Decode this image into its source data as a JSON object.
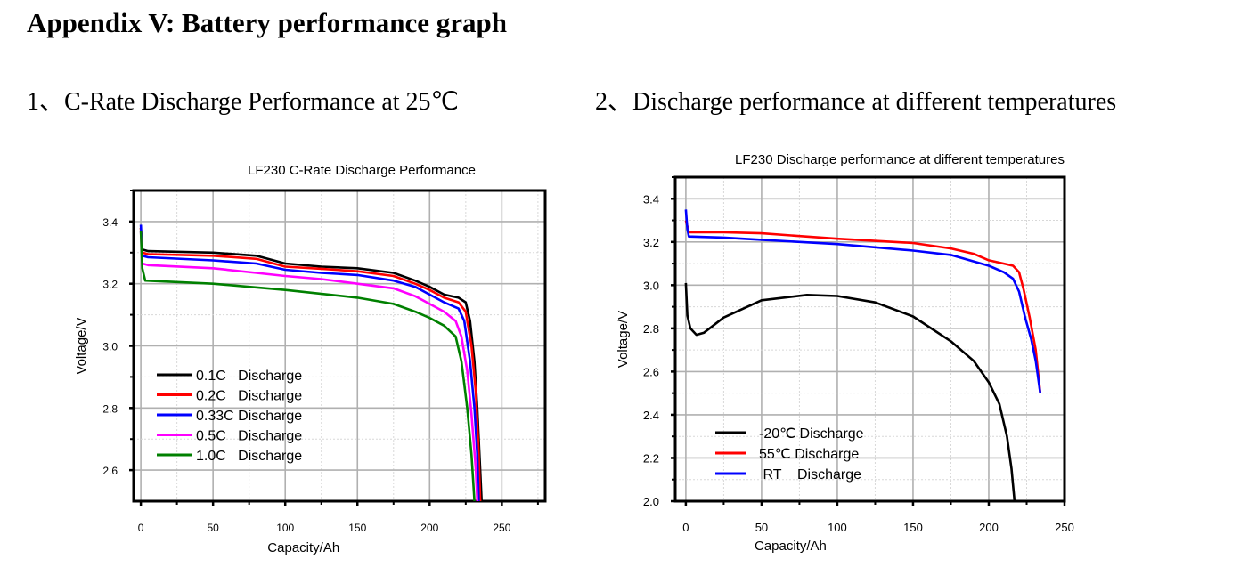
{
  "page": {
    "title": "Appendix V: Battery performance graph",
    "section1": "1、C-Rate Discharge Performance at 25℃",
    "section2": "2、Discharge performance at different temperatures"
  },
  "chart_data": [
    {
      "type": "line",
      "title": "LF230 C-Rate Discharge Performance",
      "xlabel": "Capacity/Ah",
      "ylabel": "Voltage/V",
      "xlim": [
        -5,
        280
      ],
      "ylim": [
        2.5,
        3.5
      ],
      "xticks": [
        0,
        50,
        100,
        150,
        200,
        250
      ],
      "yticks": [
        2.6,
        2.8,
        3.0,
        3.2,
        3.4
      ],
      "grid": true,
      "legend": "bottom-left",
      "series": [
        {
          "name": "0.1C   Discharge",
          "color": "#000000",
          "points": [
            [
              0,
              3.38
            ],
            [
              1,
              3.31
            ],
            [
              5,
              3.305
            ],
            [
              50,
              3.3
            ],
            [
              80,
              3.29
            ],
            [
              100,
              3.265
            ],
            [
              125,
              3.255
            ],
            [
              150,
              3.25
            ],
            [
              175,
              3.235
            ],
            [
              190,
              3.21
            ],
            [
              200,
              3.19
            ],
            [
              210,
              3.165
            ],
            [
              220,
              3.155
            ],
            [
              225,
              3.14
            ],
            [
              228,
              3.08
            ],
            [
              231,
              2.95
            ],
            [
              233,
              2.8
            ],
            [
              235,
              2.6
            ],
            [
              236,
              2.5
            ]
          ]
        },
        {
          "name": "0.2C   Discharge",
          "color": "#ff0000",
          "points": [
            [
              0,
              3.38
            ],
            [
              1,
              3.3
            ],
            [
              5,
              3.295
            ],
            [
              50,
              3.29
            ],
            [
              80,
              3.28
            ],
            [
              100,
              3.255
            ],
            [
              125,
              3.248
            ],
            [
              150,
              3.24
            ],
            [
              175,
              3.225
            ],
            [
              190,
              3.2
            ],
            [
              200,
              3.18
            ],
            [
              210,
              3.155
            ],
            [
              220,
              3.14
            ],
            [
              225,
              3.11
            ],
            [
              229,
              3.0
            ],
            [
              232,
              2.85
            ],
            [
              234,
              2.65
            ],
            [
              235,
              2.5
            ]
          ]
        },
        {
          "name": "0.33C Discharge",
          "color": "#0000ff",
          "points": [
            [
              0,
              3.39
            ],
            [
              1,
              3.29
            ],
            [
              5,
              3.285
            ],
            [
              50,
              3.275
            ],
            [
              80,
              3.265
            ],
            [
              100,
              3.245
            ],
            [
              125,
              3.235
            ],
            [
              150,
              3.228
            ],
            [
              175,
              3.21
            ],
            [
              190,
              3.19
            ],
            [
              200,
              3.165
            ],
            [
              210,
              3.14
            ],
            [
              220,
              3.12
            ],
            [
              224,
              3.08
            ],
            [
              228,
              2.95
            ],
            [
              231,
              2.8
            ],
            [
              233,
              2.65
            ],
            [
              234,
              2.5
            ]
          ]
        },
        {
          "name": "0.5C   Discharge",
          "color": "#ff00ff",
          "points": [
            [
              0,
              3.37
            ],
            [
              1,
              3.265
            ],
            [
              5,
              3.26
            ],
            [
              50,
              3.25
            ],
            [
              80,
              3.235
            ],
            [
              100,
              3.225
            ],
            [
              125,
              3.215
            ],
            [
              150,
              3.2
            ],
            [
              175,
              3.185
            ],
            [
              190,
              3.16
            ],
            [
              200,
              3.135
            ],
            [
              210,
              3.11
            ],
            [
              218,
              3.08
            ],
            [
              222,
              3.03
            ],
            [
              226,
              2.92
            ],
            [
              229,
              2.78
            ],
            [
              232,
              2.6
            ],
            [
              233,
              2.5
            ]
          ]
        },
        {
          "name": "1.0C   Discharge",
          "color": "#008000",
          "points": [
            [
              0,
              3.37
            ],
            [
              1,
              3.25
            ],
            [
              3,
              3.21
            ],
            [
              50,
              3.2
            ],
            [
              100,
              3.18
            ],
            [
              150,
              3.155
            ],
            [
              175,
              3.135
            ],
            [
              190,
              3.11
            ],
            [
              200,
              3.09
            ],
            [
              210,
              3.065
            ],
            [
              218,
              3.03
            ],
            [
              222,
              2.95
            ],
            [
              226,
              2.8
            ],
            [
              229,
              2.65
            ],
            [
              231,
              2.5
            ]
          ]
        }
      ]
    },
    {
      "type": "line",
      "title": "LF230 Discharge performance at different temperatures",
      "xlabel": "Capacity/Ah",
      "ylabel": "Voltage/V",
      "xlim": [
        -7,
        250
      ],
      "ylim": [
        2.0,
        3.5
      ],
      "xticks": [
        0,
        50,
        100,
        150,
        200,
        250
      ],
      "yticks": [
        2.0,
        2.2,
        2.4,
        2.6,
        2.8,
        3.0,
        3.2,
        3.4
      ],
      "grid": true,
      "legend": "bottom-left",
      "series": [
        {
          "name": "-20℃ Discharge",
          "color": "#000000",
          "points": [
            [
              0,
              3.01
            ],
            [
              1,
              2.86
            ],
            [
              3,
              2.8
            ],
            [
              7,
              2.77
            ],
            [
              12,
              2.78
            ],
            [
              25,
              2.85
            ],
            [
              50,
              2.93
            ],
            [
              80,
              2.955
            ],
            [
              100,
              2.95
            ],
            [
              125,
              2.92
            ],
            [
              150,
              2.855
            ],
            [
              175,
              2.74
            ],
            [
              190,
              2.65
            ],
            [
              200,
              2.55
            ],
            [
              207,
              2.45
            ],
            [
              212,
              2.3
            ],
            [
              215,
              2.15
            ],
            [
              217,
              2.0
            ]
          ]
        },
        {
          "name": "55℃ Discharge",
          "color": "#ff0000",
          "points": [
            [
              0,
              3.3
            ],
            [
              2,
              3.245
            ],
            [
              25,
              3.245
            ],
            [
              50,
              3.24
            ],
            [
              100,
              3.215
            ],
            [
              150,
              3.195
            ],
            [
              175,
              3.17
            ],
            [
              190,
              3.145
            ],
            [
              200,
              3.115
            ],
            [
              210,
              3.1
            ],
            [
              216,
              3.09
            ],
            [
              220,
              3.06
            ],
            [
              223,
              2.98
            ],
            [
              227,
              2.85
            ],
            [
              231,
              2.7
            ],
            [
              234,
              2.5
            ]
          ]
        },
        {
          "name": " RT    Discharge",
          "color": "#0000ff",
          "points": [
            [
              0,
              3.35
            ],
            [
              1,
              3.26
            ],
            [
              2,
              3.225
            ],
            [
              25,
              3.22
            ],
            [
              50,
              3.21
            ],
            [
              100,
              3.19
            ],
            [
              150,
              3.16
            ],
            [
              175,
              3.14
            ],
            [
              200,
              3.09
            ],
            [
              210,
              3.06
            ],
            [
              216,
              3.03
            ],
            [
              220,
              2.97
            ],
            [
              224,
              2.85
            ],
            [
              228,
              2.75
            ],
            [
              231,
              2.65
            ],
            [
              234,
              2.5
            ]
          ]
        }
      ]
    }
  ]
}
